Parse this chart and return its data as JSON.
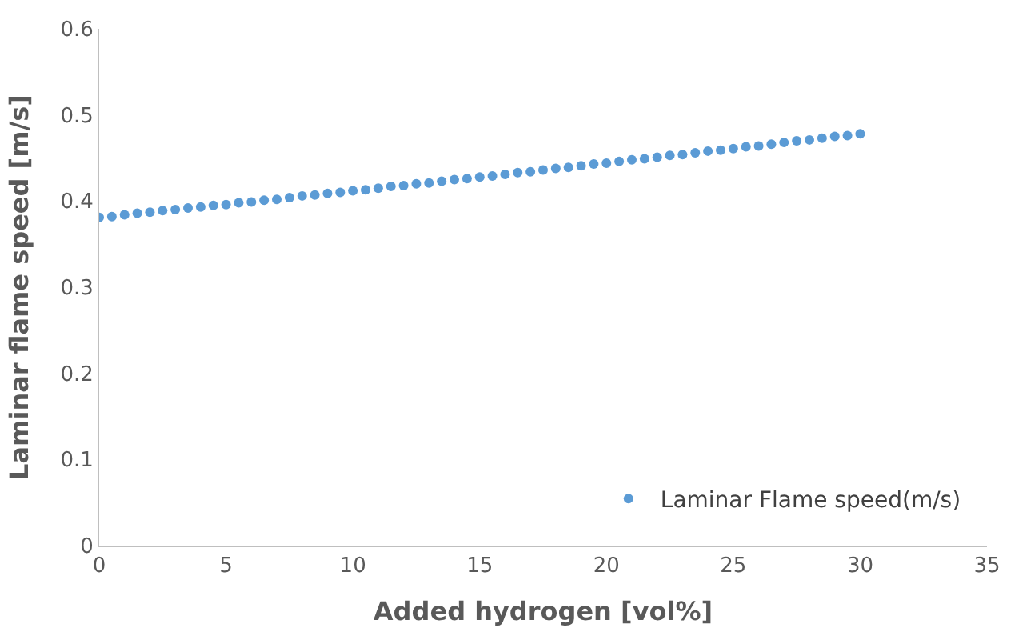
{
  "chart_data": {
    "type": "scatter",
    "xlabel": "Added hydrogen [vol%]",
    "ylabel": "Laminar flame speed [m/s]",
    "x": [
      0,
      0.5,
      1,
      1.5,
      2,
      2.5,
      3,
      3.5,
      4,
      4.5,
      5,
      5.5,
      6,
      6.5,
      7,
      7.5,
      8,
      8.5,
      9,
      9.5,
      10,
      10.5,
      11,
      11.5,
      12,
      12.5,
      13,
      13.5,
      14,
      14.5,
      15,
      15.5,
      16,
      16.5,
      17,
      17.5,
      18,
      18.5,
      19,
      19.5,
      20,
      20.5,
      21,
      21.5,
      22,
      22.5,
      23,
      23.5,
      24,
      24.5,
      25,
      25.5,
      26,
      26.5,
      27,
      27.5,
      28,
      28.5,
      29,
      29.5,
      30
    ],
    "series": [
      {
        "name": "Laminar Flame speed(m/s)",
        "color": "#5b9bd5",
        "values": [
          0.381,
          0.382,
          0.384,
          0.386,
          0.387,
          0.389,
          0.39,
          0.392,
          0.393,
          0.395,
          0.396,
          0.398,
          0.399,
          0.401,
          0.402,
          0.404,
          0.406,
          0.407,
          0.409,
          0.41,
          0.412,
          0.413,
          0.415,
          0.417,
          0.418,
          0.42,
          0.421,
          0.423,
          0.425,
          0.426,
          0.428,
          0.429,
          0.431,
          0.433,
          0.434,
          0.436,
          0.438,
          0.439,
          0.441,
          0.443,
          0.444,
          0.446,
          0.448,
          0.449,
          0.451,
          0.453,
          0.454,
          0.456,
          0.458,
          0.459,
          0.461,
          0.463,
          0.464,
          0.466,
          0.468,
          0.47,
          0.471,
          0.473,
          0.475,
          0.476,
          0.478
        ]
      }
    ],
    "xlim": [
      0,
      35
    ],
    "xticks": [
      0,
      5,
      10,
      15,
      20,
      25,
      30,
      35
    ],
    "ylim": [
      0,
      0.6
    ],
    "yticks": [
      0,
      0.1,
      0.2,
      0.3,
      0.4,
      0.5,
      0.6
    ],
    "legend": "bottom right",
    "marker": "circle"
  }
}
